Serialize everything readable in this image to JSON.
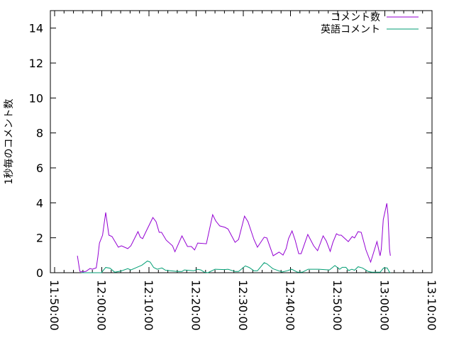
{
  "chart_data": {
    "type": "line",
    "title": "",
    "xlabel": "",
    "ylabel": "1秒毎のコメント数",
    "xlim": [
      "11:49:06",
      "13:10:00"
    ],
    "ylim": [
      0,
      15
    ],
    "xticks": [
      "11:50:00",
      "12:00:00",
      "12:10:00",
      "12:20:00",
      "12:30:00",
      "12:40:00",
      "12:50:00",
      "13:00:00",
      "13:10:00"
    ],
    "yticks": [
      "0",
      "2",
      "4",
      "6",
      "8",
      "10",
      "12",
      "14"
    ],
    "grid": false,
    "legend_position": "top-right",
    "series": [
      {
        "name": "コメント数",
        "color": "#9400d3",
        "points": [
          [
            "11:54:50",
            0.97
          ],
          [
            "11:55:20",
            0.08
          ],
          [
            "11:56:00",
            0.04
          ],
          [
            "11:56:40",
            0.08
          ],
          [
            "11:57:30",
            0.24
          ],
          [
            "11:58:00",
            0.2
          ],
          [
            "11:58:50",
            0.28
          ],
          [
            "11:59:10",
            0.89
          ],
          [
            "11:59:30",
            1.7
          ],
          [
            "12:00:10",
            2.15
          ],
          [
            "12:00:50",
            3.45
          ],
          [
            "12:01:30",
            2.15
          ],
          [
            "12:02:10",
            2.07
          ],
          [
            "12:03:30",
            1.46
          ],
          [
            "12:04:10",
            1.54
          ],
          [
            "12:05:30",
            1.38
          ],
          [
            "12:06:10",
            1.54
          ],
          [
            "12:07:40",
            2.35
          ],
          [
            "12:08:10",
            2.03
          ],
          [
            "12:08:40",
            1.95
          ],
          [
            "12:09:30",
            2.43
          ],
          [
            "12:10:50",
            3.16
          ],
          [
            "12:11:30",
            2.92
          ],
          [
            "12:12:10",
            2.31
          ],
          [
            "12:12:40",
            2.31
          ],
          [
            "12:13:40",
            1.86
          ],
          [
            "12:15:00",
            1.54
          ],
          [
            "12:15:30",
            1.2
          ],
          [
            "12:17:00",
            2.11
          ],
          [
            "12:18:10",
            1.5
          ],
          [
            "12:19:00",
            1.5
          ],
          [
            "12:19:40",
            1.3
          ],
          [
            "12:20:20",
            1.7
          ],
          [
            "12:22:10",
            1.66
          ],
          [
            "12:23:30",
            3.32
          ],
          [
            "12:24:10",
            2.96
          ],
          [
            "12:25:00",
            2.68
          ],
          [
            "12:26:05",
            2.6
          ],
          [
            "12:26:45",
            2.5
          ],
          [
            "12:28:15",
            1.74
          ],
          [
            "12:29:00",
            1.9
          ],
          [
            "12:30:15",
            3.24
          ],
          [
            "12:31:00",
            2.92
          ],
          [
            "12:32:15",
            1.9
          ],
          [
            "12:33:00",
            1.46
          ],
          [
            "12:34:25",
            2.03
          ],
          [
            "12:35:00",
            1.99
          ],
          [
            "12:36:20",
            0.97
          ],
          [
            "12:37:35",
            1.18
          ],
          [
            "12:38:25",
            1.01
          ],
          [
            "12:39:05",
            1.38
          ],
          [
            "12:39:35",
            1.95
          ],
          [
            "12:40:20",
            2.39
          ],
          [
            "12:41:00",
            1.86
          ],
          [
            "12:41:45",
            1.09
          ],
          [
            "12:42:15",
            1.09
          ],
          [
            "12:43:40",
            2.19
          ],
          [
            "12:44:55",
            1.54
          ],
          [
            "12:45:45",
            1.26
          ],
          [
            "12:46:55",
            2.11
          ],
          [
            "12:47:35",
            1.82
          ],
          [
            "12:48:25",
            1.22
          ],
          [
            "12:49:00",
            1.74
          ],
          [
            "12:49:45",
            2.23
          ],
          [
            "12:50:15",
            2.15
          ],
          [
            "12:50:45",
            2.15
          ],
          [
            "12:52:15",
            1.78
          ],
          [
            "12:53:05",
            2.07
          ],
          [
            "12:53:35",
            1.99
          ],
          [
            "12:54:20",
            2.35
          ],
          [
            "12:55:00",
            2.31
          ],
          [
            "12:56:00",
            1.3
          ],
          [
            "12:57:00",
            0.61
          ],
          [
            "12:58:20",
            1.78
          ],
          [
            "12:59:00",
            0.97
          ],
          [
            "12:59:15",
            1.34
          ],
          [
            "12:59:40",
            3.04
          ],
          [
            "13:00:25",
            3.97
          ],
          [
            "13:00:40",
            3.32
          ],
          [
            "13:01:00",
            1.34
          ],
          [
            "13:01:10",
            0.97
          ]
        ]
      },
      {
        "name": "英語コメント",
        "color": "#009e73",
        "points": [
          [
            "11:55:40",
            0
          ],
          [
            "11:58:40",
            0
          ],
          [
            "11:59:55",
            0
          ],
          [
            "12:00:50",
            0.3
          ],
          [
            "12:01:45",
            0.26
          ],
          [
            "12:02:45",
            0.03
          ],
          [
            "12:04:00",
            0.09
          ],
          [
            "12:05:30",
            0.23
          ],
          [
            "12:06:10",
            0.16
          ],
          [
            "12:07:45",
            0.34
          ],
          [
            "12:08:30",
            0.43
          ],
          [
            "12:09:40",
            0.67
          ],
          [
            "12:10:15",
            0.61
          ],
          [
            "12:11:00",
            0.3
          ],
          [
            "12:11:45",
            0.2
          ],
          [
            "12:12:45",
            0.27
          ],
          [
            "12:13:30",
            0.14
          ],
          [
            "12:16:00",
            0.07
          ],
          [
            "12:17:00",
            0.07
          ],
          [
            "12:17:30",
            0.16
          ],
          [
            "12:19:30",
            0.11
          ],
          [
            "12:20:15",
            0.2
          ],
          [
            "12:21:00",
            0.16
          ],
          [
            "12:21:45",
            0.03
          ],
          [
            "12:22:30",
            0
          ],
          [
            "12:24:00",
            0.2
          ],
          [
            "12:26:00",
            0.18
          ],
          [
            "12:26:45",
            0.2
          ],
          [
            "12:28:15",
            0.07
          ],
          [
            "12:29:00",
            0.07
          ],
          [
            "12:30:25",
            0.39
          ],
          [
            "12:31:15",
            0.3
          ],
          [
            "12:32:15",
            0.11
          ],
          [
            "12:33:00",
            0.11
          ],
          [
            "12:34:25",
            0.57
          ],
          [
            "12:35:00",
            0.51
          ],
          [
            "12:36:15",
            0.23
          ],
          [
            "12:37:30",
            0.11
          ],
          [
            "12:38:15",
            0.04
          ],
          [
            "12:39:15",
            0.11
          ],
          [
            "12:40:15",
            0.2
          ],
          [
            "12:41:30",
            0.03
          ],
          [
            "12:42:30",
            0.03
          ],
          [
            "12:43:45",
            0.2
          ],
          [
            "12:46:00",
            0.2
          ],
          [
            "12:48:15",
            0.16
          ],
          [
            "12:49:25",
            0.41
          ],
          [
            "12:50:25",
            0.2
          ],
          [
            "12:51:00",
            0.31
          ],
          [
            "12:51:45",
            0.31
          ],
          [
            "12:52:20",
            0.12
          ],
          [
            "12:53:00",
            0.2
          ],
          [
            "12:53:35",
            0.14
          ],
          [
            "12:54:20",
            0.34
          ],
          [
            "12:55:15",
            0.27
          ],
          [
            "12:56:30",
            0.07
          ],
          [
            "12:57:15",
            0.03
          ],
          [
            "12:59:00",
            0.03
          ],
          [
            "12:59:45",
            0.27
          ],
          [
            "13:00:30",
            0.27
          ],
          [
            "13:01:00",
            0.03
          ],
          [
            "13:01:10",
            0
          ]
        ]
      }
    ]
  }
}
